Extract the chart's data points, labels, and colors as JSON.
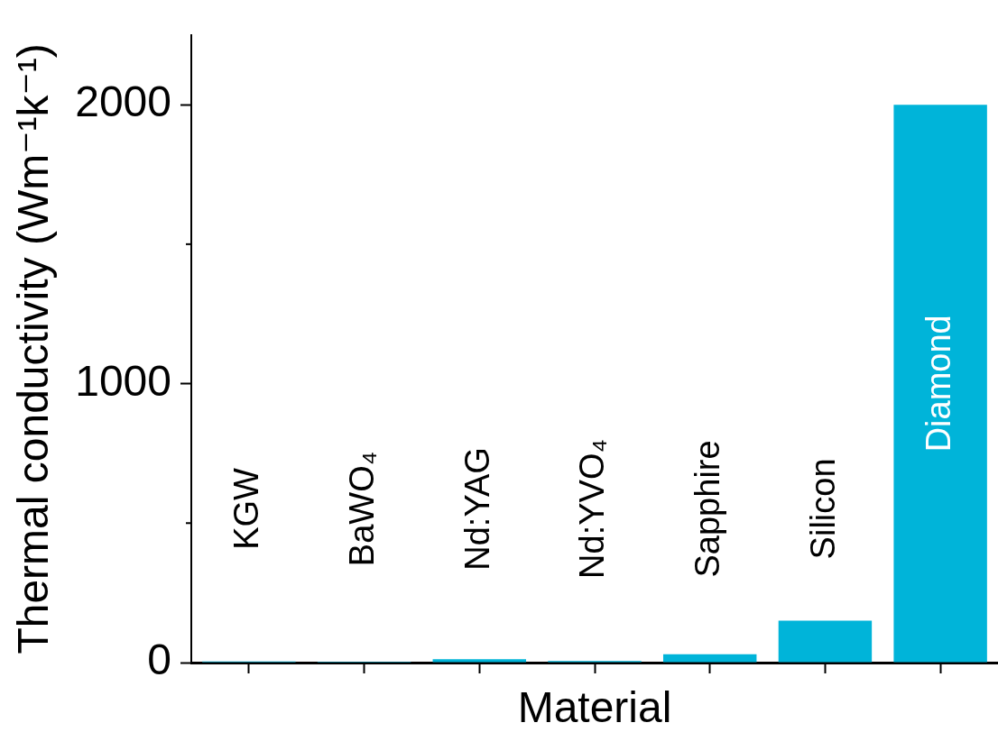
{
  "chart_data": {
    "type": "bar",
    "xlabel": "Material",
    "ylabel": "Thermal conductivity (Wm⁻¹k⁻¹)",
    "categories": [
      "KGW",
      "BaWO₄",
      "Nd:YAG",
      "Nd:YVO₄",
      "Sapphire",
      "Silicon",
      "Diamond"
    ],
    "values": [
      4,
      3,
      12,
      6,
      30,
      150,
      2000
    ],
    "color": "#00b4d9",
    "ylim": [
      0,
      2250
    ],
    "yticks": [
      0,
      {
        "value": 500,
        "label": null
      },
      1000,
      {
        "value": 1500,
        "label": null
      },
      2000
    ]
  }
}
